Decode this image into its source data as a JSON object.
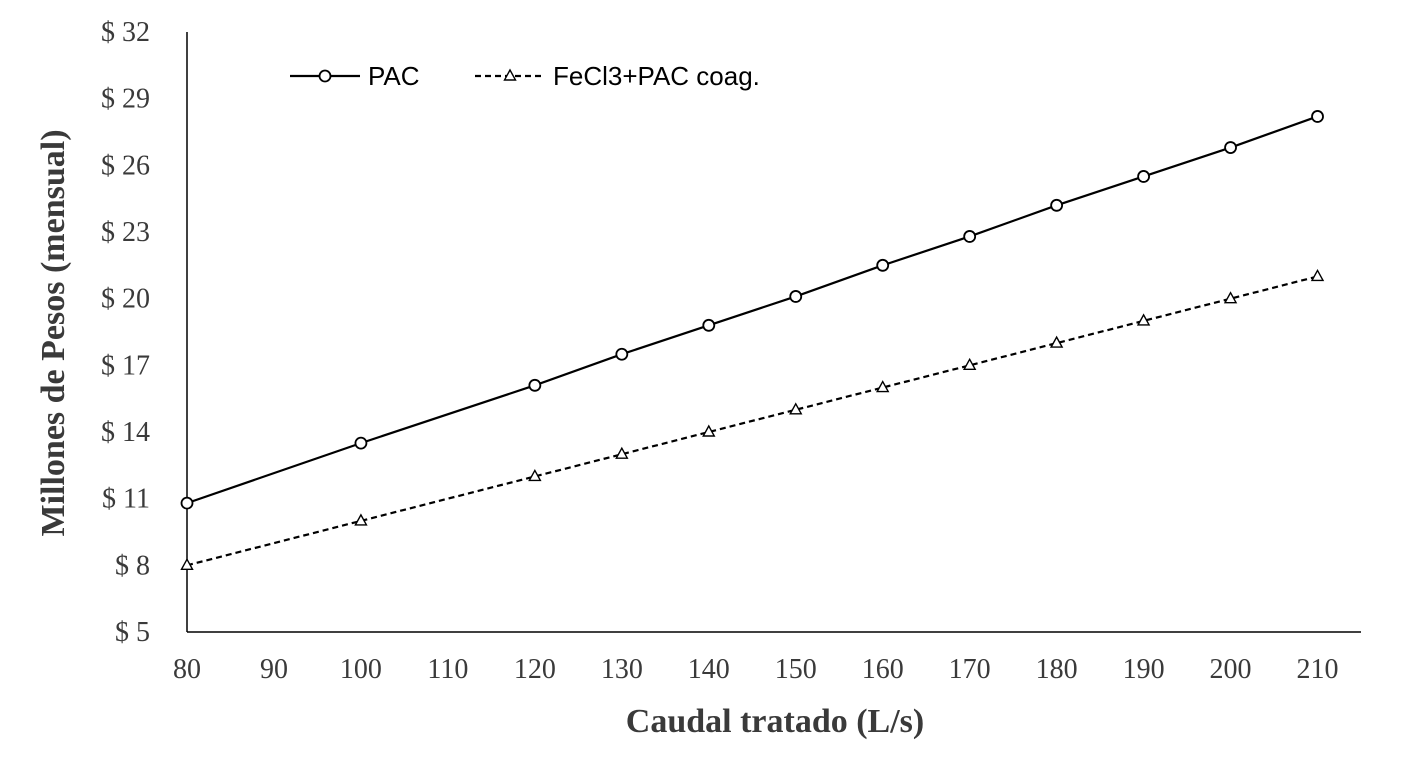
{
  "chart_data": {
    "type": "line",
    "xlabel": "Caudal tratado (L/s)",
    "ylabel": "Millones de Pesos (mensual)",
    "x_ticks": [
      80,
      90,
      100,
      110,
      120,
      130,
      140,
      150,
      160,
      170,
      180,
      190,
      200,
      210
    ],
    "y_ticks": [
      "$ 5",
      "$ 8",
      "$ 11",
      "$ 14",
      "$ 17",
      "$ 20",
      "$ 23",
      "$ 26",
      "$ 29",
      "$ 32"
    ],
    "xlim": [
      80,
      215
    ],
    "ylim": [
      5,
      32
    ],
    "y_tick_values": [
      5,
      8,
      11,
      14,
      17,
      20,
      23,
      26,
      29,
      32
    ],
    "grid": false,
    "legend_position": "top-left",
    "series": [
      {
        "name": "PAC",
        "style": "solid",
        "marker": "circle",
        "color": "#000000",
        "x": [
          80,
          100,
          120,
          130,
          140,
          150,
          160,
          170,
          180,
          190,
          200,
          210
        ],
        "y": [
          10.8,
          13.5,
          16.1,
          17.5,
          18.8,
          20.1,
          21.5,
          22.8,
          24.2,
          25.5,
          26.8,
          28.2
        ]
      },
      {
        "name": "FeCl3+PAC coag.",
        "style": "dashed",
        "marker": "triangle",
        "color": "#000000",
        "x": [
          80,
          100,
          120,
          130,
          140,
          150,
          160,
          170,
          180,
          190,
          200,
          210
        ],
        "y": [
          8.0,
          10.0,
          12.0,
          13.0,
          14.0,
          15.0,
          16.0,
          17.0,
          18.0,
          19.0,
          20.0,
          21.0
        ]
      }
    ]
  }
}
